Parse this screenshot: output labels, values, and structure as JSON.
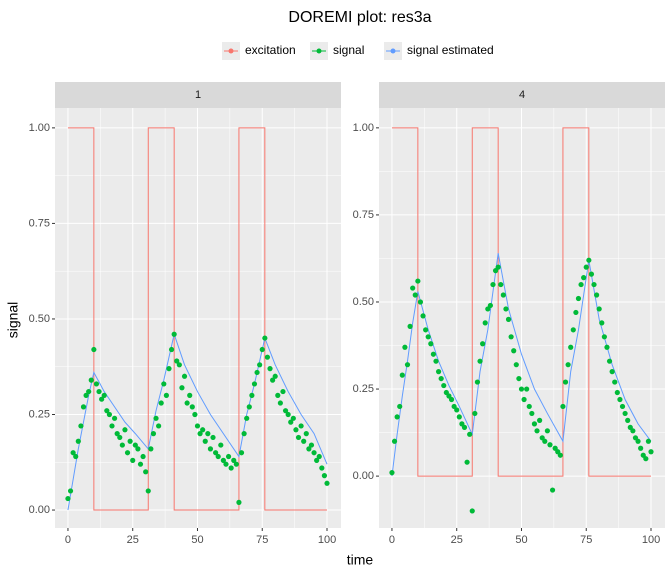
{
  "chart_data": {
    "type": "line",
    "title": "DOREMI plot: res3a",
    "x_label": "time",
    "y_label": "signal",
    "legend_position": "top",
    "grid": true,
    "series": [
      {
        "name": "excitation",
        "color": "#F8766D"
      },
      {
        "name": "signal",
        "color": "#00BA38"
      },
      {
        "name": "signal estimated",
        "color": "#619CFF"
      }
    ],
    "x": [
      0,
      1,
      2,
      3,
      4,
      5,
      6,
      7,
      8,
      9,
      10,
      11,
      12,
      13,
      14,
      15,
      16,
      17,
      18,
      19,
      20,
      21,
      22,
      23,
      24,
      25,
      26,
      27,
      28,
      29,
      30,
      31,
      32,
      33,
      34,
      35,
      36,
      37,
      38,
      39,
      40,
      41,
      42,
      43,
      44,
      45,
      46,
      47,
      48,
      49,
      50,
      51,
      52,
      53,
      54,
      55,
      56,
      57,
      58,
      59,
      60,
      61,
      62,
      63,
      64,
      65,
      66,
      67,
      68,
      69,
      70,
      71,
      72,
      73,
      74,
      75,
      76,
      77,
      78,
      79,
      80,
      81,
      82,
      83,
      84,
      85,
      86,
      87,
      88,
      89,
      90,
      91,
      92,
      93,
      94,
      95,
      96,
      97,
      98,
      99,
      100
    ],
    "excitation_x": [
      0,
      10,
      10,
      31,
      31,
      41,
      41,
      66,
      66,
      76,
      76,
      100
    ],
    "excitation": [
      1,
      1,
      0,
      0,
      1,
      1,
      0,
      0,
      1,
      1,
      0,
      0
    ],
    "estimated_x": [
      0,
      2,
      4,
      6,
      8,
      10,
      14,
      18,
      22,
      26,
      31,
      34,
      37,
      41,
      45,
      50,
      55,
      60,
      66,
      69,
      72,
      76,
      80,
      85,
      90,
      95,
      100
    ],
    "facets": [
      {
        "strip": "1",
        "xlim": [
          -5,
          105.4
        ],
        "ylim": [
          -0.047,
          1.052
        ],
        "xticks": [
          0,
          25,
          50,
          75,
          100
        ],
        "yticks": [
          {
            "value": 0,
            "label": "0.00"
          },
          {
            "value": 0.25,
            "label": "0.25"
          },
          {
            "value": 0.5,
            "label": "0.50"
          },
          {
            "value": 0.75,
            "label": "0.75"
          },
          {
            "value": 1,
            "label": "1.00"
          }
        ],
        "signal": [
          0.03,
          0.05,
          0.15,
          0.14,
          0.18,
          0.22,
          0.27,
          0.3,
          0.31,
          0.34,
          0.42,
          0.33,
          0.31,
          0.29,
          0.3,
          0.26,
          0.25,
          0.22,
          0.24,
          0.2,
          0.19,
          0.17,
          0.21,
          0.15,
          0.18,
          0.13,
          0.17,
          0.16,
          0.12,
          0.14,
          0.1,
          0.05,
          0.16,
          0.2,
          0.24,
          0.22,
          0.28,
          0.33,
          0.3,
          0.37,
          0.42,
          0.46,
          0.39,
          0.38,
          0.32,
          0.35,
          0.28,
          0.3,
          0.27,
          0.25,
          0.22,
          0.2,
          0.21,
          0.18,
          0.2,
          0.16,
          0.19,
          0.15,
          0.14,
          0.17,
          0.13,
          0.12,
          0.14,
          0.11,
          0.13,
          0.12,
          0.02,
          0.15,
          0.2,
          0.24,
          0.27,
          0.3,
          0.33,
          0.36,
          0.38,
          0.42,
          0.45,
          0.4,
          0.37,
          0.34,
          0.35,
          0.3,
          0.28,
          0.31,
          0.26,
          0.25,
          0.23,
          0.24,
          0.21,
          0.19,
          0.22,
          0.18,
          0.2,
          0.16,
          0.17,
          0.15,
          0.13,
          0.14,
          0.11,
          0.09,
          0.07
        ],
        "estimated": [
          0,
          0.08,
          0.16,
          0.23,
          0.3,
          0.36,
          0.31,
          0.27,
          0.23,
          0.2,
          0.16,
          0.26,
          0.34,
          0.46,
          0.38,
          0.31,
          0.25,
          0.2,
          0.14,
          0.25,
          0.33,
          0.45,
          0.38,
          0.31,
          0.25,
          0.2,
          0.12
        ]
      },
      {
        "strip": "4",
        "xlim": [
          -5,
          105.4
        ],
        "ylim": [
          -0.149,
          1.057
        ],
        "xticks": [
          0,
          25,
          50,
          75,
          100
        ],
        "yticks": [
          {
            "value": 0,
            "label": "0.00"
          },
          {
            "value": 0.25,
            "label": "0.25"
          },
          {
            "value": 0.5,
            "label": "0.50"
          },
          {
            "value": 0.75,
            "label": "0.75"
          },
          {
            "value": 1,
            "label": "1.00"
          }
        ],
        "signal": [
          0.01,
          0.1,
          0.17,
          0.2,
          0.29,
          0.37,
          0.32,
          0.43,
          0.54,
          0.52,
          0.56,
          0.5,
          0.46,
          0.42,
          0.4,
          0.38,
          0.35,
          0.33,
          0.3,
          0.28,
          0.26,
          0.24,
          0.23,
          0.22,
          0.2,
          0.19,
          0.17,
          0.15,
          0.14,
          0.04,
          0.12,
          -0.1,
          0.18,
          0.27,
          0.33,
          0.38,
          0.44,
          0.48,
          0.49,
          0.55,
          0.59,
          0.6,
          0.55,
          0.52,
          0.48,
          0.45,
          0.4,
          0.36,
          0.32,
          0.28,
          0.25,
          0.22,
          0.25,
          0.2,
          0.18,
          0.15,
          0.13,
          0.16,
          0.11,
          0.1,
          0.13,
          0.09,
          -0.04,
          0.08,
          0.07,
          0.06,
          0.2,
          0.27,
          0.32,
          0.37,
          0.42,
          0.47,
          0.51,
          0.55,
          0.57,
          0.6,
          0.62,
          0.58,
          0.55,
          0.52,
          0.48,
          0.44,
          0.4,
          0.37,
          0.33,
          0.3,
          0.27,
          0.24,
          0.22,
          0.2,
          0.18,
          0.16,
          0.14,
          0.13,
          0.11,
          0.1,
          0.08,
          0.06,
          0.05,
          0.1,
          0.07
        ],
        "estimated": [
          0,
          0.12,
          0.23,
          0.33,
          0.44,
          0.53,
          0.42,
          0.33,
          0.26,
          0.2,
          0.12,
          0.3,
          0.42,
          0.64,
          0.48,
          0.35,
          0.25,
          0.18,
          0.1,
          0.3,
          0.42,
          0.62,
          0.45,
          0.32,
          0.22,
          0.15,
          0.1
        ]
      }
    ]
  }
}
